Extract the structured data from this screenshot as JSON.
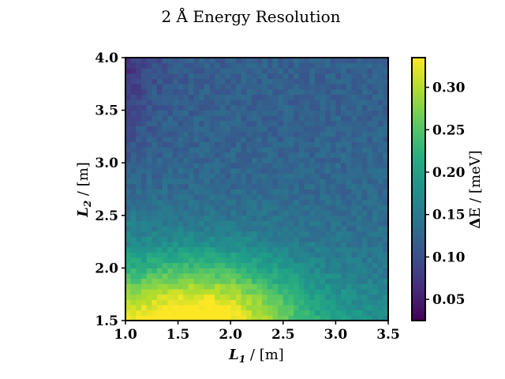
{
  "chart_data": {
    "type": "heatmap",
    "title": "2 Å Energy Resolution",
    "xlabel": {
      "symbol": "L",
      "subscript": "1",
      "unit": " / [m]"
    },
    "ylabel": {
      "symbol": "L",
      "subscript": "2",
      "unit": " / [m]"
    },
    "colorbar_label": {
      "symbol": "Δ",
      "text": "E / [meV]"
    },
    "xlim": [
      1.0,
      3.5
    ],
    "ylim": [
      1.5,
      4.0
    ],
    "clim": [
      0.025,
      0.335
    ],
    "colormap": "viridis",
    "grid": "off",
    "xticks": [
      "1.0",
      "1.5",
      "2.0",
      "2.5",
      "3.0",
      "3.5"
    ],
    "yticks": [
      "1.5",
      "2.0",
      "2.5",
      "3.0",
      "3.5",
      "4.0"
    ],
    "cticks": [
      "0.05",
      "0.10",
      "0.15",
      "0.20",
      "0.25",
      "0.30"
    ],
    "grid_size": {
      "nx": 50,
      "ny": 50
    },
    "description_points": [
      {
        "L1": 1.7,
        "L2": 1.55,
        "dE": 0.32
      },
      {
        "L1": 1.5,
        "L2": 1.55,
        "dE": 0.3
      },
      {
        "L1": 2.0,
        "L2": 1.8,
        "dE": 0.26
      },
      {
        "L1": 1.0,
        "L2": 2.0,
        "dE": 0.22
      },
      {
        "L1": 2.5,
        "L2": 2.5,
        "dE": 0.18
      },
      {
        "L1": 3.5,
        "L2": 2.0,
        "dE": 0.19
      },
      {
        "L1": 3.5,
        "L2": 4.0,
        "dE": 0.12
      },
      {
        "L1": 1.0,
        "L2": 4.0,
        "dE": 0.04
      },
      {
        "L1": 1.2,
        "L2": 3.6,
        "dE": 0.06
      }
    ]
  }
}
